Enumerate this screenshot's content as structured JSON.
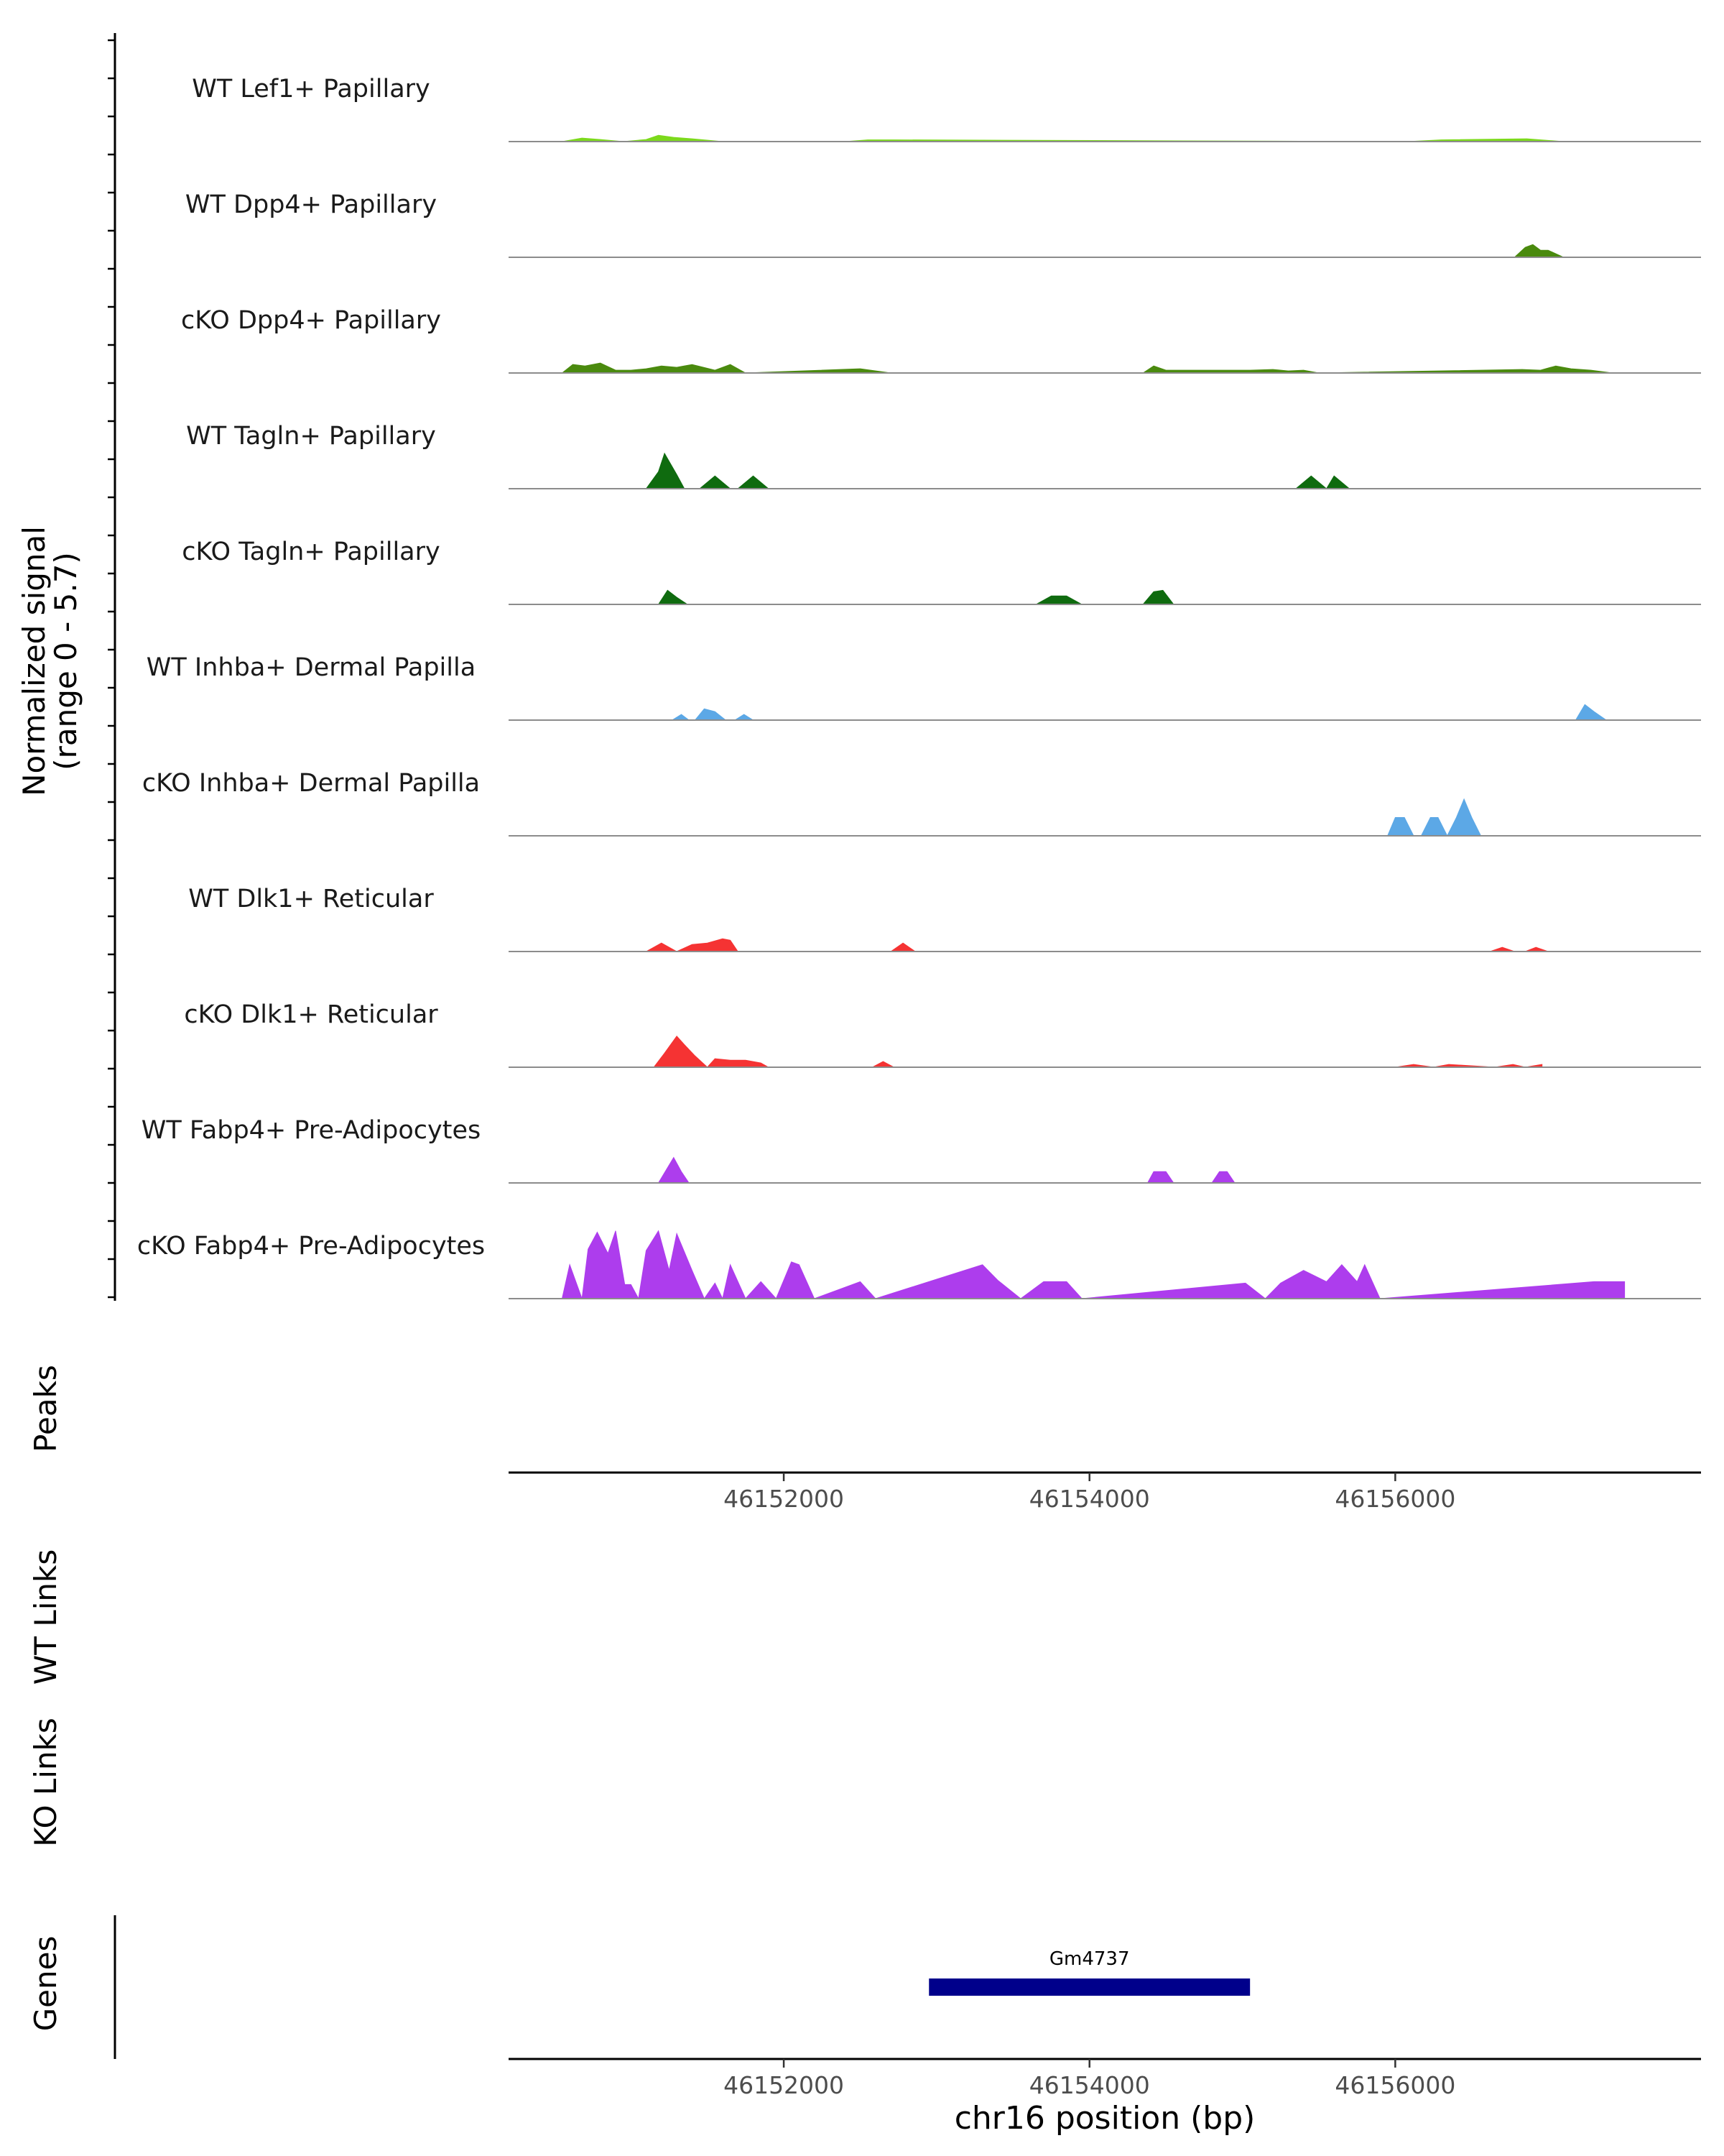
{
  "chart_data": {
    "type": "area",
    "title": "",
    "signal_ylabel": "Normalized signal",
    "signal_range_label": "(range 0 - 5.7)",
    "ylim": [
      0,
      5.7
    ],
    "xlim": [
      46150200,
      46158000
    ],
    "chromosome": "chr16",
    "xlabel": "chr16 position (bp)",
    "xticks": [
      46152000,
      46154000,
      46156000
    ],
    "xtick_labels": [
      "46152000",
      "46154000",
      "46156000"
    ],
    "tracks": [
      {
        "name": "WT Lef1+ Papillary",
        "color": "#7cd91c",
        "x": [
          46150550,
          46150680,
          46150800,
          46150950,
          46151100,
          46151180,
          46151280,
          46151400,
          46151600,
          46152400,
          46152550,
          46152720,
          46156080,
          46156300,
          46156860,
          46157100
        ],
        "y": [
          0,
          0.25,
          0.15,
          0,
          0.15,
          0.45,
          0.3,
          0.2,
          0,
          0,
          0.12,
          0.12,
          0,
          0.12,
          0.2,
          0
        ]
      },
      {
        "name": "WT Dpp4+ Papillary",
        "color": "#4a8a0e",
        "x": [
          46156780,
          46156850,
          46156900,
          46156950,
          46157000,
          46157100
        ],
        "y": [
          0,
          0.7,
          0.9,
          0.5,
          0.5,
          0
        ]
      },
      {
        "name": "cKO Dpp4+ Papillary",
        "color": "#4a8a0e",
        "x": [
          46150550,
          46150620,
          46150700,
          46150800,
          46150900,
          46151000,
          46151100,
          46151200,
          46151300,
          46151400,
          46151550,
          46151650,
          46151750,
          46152500,
          46152700,
          46154350,
          46154420,
          46154500,
          46155050,
          46155200,
          46155300,
          46155400,
          46155500,
          46156830,
          46156950,
          46157050,
          46157150,
          46157280,
          46157420
        ],
        "y": [
          0,
          0.6,
          0.5,
          0.7,
          0.2,
          0.2,
          0.3,
          0.5,
          0.4,
          0.6,
          0.2,
          0.6,
          0,
          0.3,
          0,
          0,
          0.5,
          0.2,
          0.2,
          0.25,
          0.15,
          0.2,
          0,
          0.25,
          0.2,
          0.5,
          0.3,
          0.2,
          0
        ]
      },
      {
        "name": "WT Tagln+ Papillary",
        "color": "#0f6b0f",
        "x": [
          46151100,
          46151180,
          46151220,
          46151300,
          46151350,
          46151450,
          46151550,
          46151650,
          46151700,
          46151800,
          46151900,
          46155350,
          46155450,
          46155550,
          46155600,
          46155700
        ],
        "y": [
          0,
          1.2,
          2.5,
          1.0,
          0,
          0,
          0.9,
          0,
          0,
          0.9,
          0,
          0,
          0.9,
          0,
          0.9,
          0
        ]
      },
      {
        "name": "cKO Tagln+ Papillary",
        "color": "#0f6b0f",
        "x": [
          46151180,
          46151240,
          46151300,
          46151370,
          46153650,
          46153750,
          46153850,
          46153950,
          46154350,
          46154420,
          46154480,
          46154550
        ],
        "y": [
          0,
          1.0,
          0.5,
          0,
          0,
          0.6,
          0.6,
          0,
          0,
          0.9,
          1.0,
          0
        ]
      },
      {
        "name": "WT Inhba+ Dermal Papilla",
        "color": "#5ca8e6",
        "x": [
          46151270,
          46151330,
          46151380,
          46151420,
          46151480,
          46151550,
          46151620,
          46151680,
          46151740,
          46151800,
          46157180,
          46157240,
          46157300,
          46157380
        ],
        "y": [
          0,
          0.4,
          0,
          0,
          0.8,
          0.6,
          0,
          0,
          0.4,
          0,
          0,
          1.1,
          0.6,
          0
        ]
      },
      {
        "name": "cKO Inhba+ Dermal Papilla",
        "color": "#5ca8e6",
        "x": [
          46155950,
          46156000,
          46156060,
          46156120,
          46156170,
          46156230,
          46156280,
          46156340,
          46156400,
          46156450,
          46156500,
          46156560
        ],
        "y": [
          0,
          1.3,
          1.3,
          0,
          0,
          1.3,
          1.3,
          0,
          1.3,
          2.6,
          1.3,
          0
        ]
      },
      {
        "name": "WT Dlk1+ Reticular",
        "color": "#f53333",
        "x": [
          46151100,
          46151200,
          46151300,
          46151400,
          46151500,
          46151600,
          46151650,
          46151700,
          46152700,
          46152780,
          46152860,
          46156620,
          46156700,
          46156780,
          46156850,
          46156920,
          46157000
        ],
        "y": [
          0,
          0.6,
          0,
          0.5,
          0.6,
          0.9,
          0.8,
          0,
          0,
          0.6,
          0,
          0,
          0.3,
          0,
          0,
          0.3,
          0
        ]
      },
      {
        "name": "cKO Dlk1+ Reticular",
        "color": "#f53333",
        "x": [
          46151150,
          46151220,
          46151300,
          46151350,
          46151420,
          46151500,
          46151550,
          46151650,
          46151750,
          46151850,
          46151900,
          46152580,
          46152650,
          46152720,
          46156000,
          46156120,
          46156250,
          46156350,
          46156650,
          46156770,
          46156850,
          46156960
        ],
        "y": [
          0,
          1.0,
          2.2,
          1.6,
          0.8,
          0,
          0.6,
          0.5,
          0.5,
          0.3,
          0,
          0,
          0.4,
          0,
          0,
          0.2,
          0,
          0.2,
          0,
          0.2,
          0,
          0.2
        ]
      },
      {
        "name": "WT Fabp4+ Pre-Adipocytes",
        "color": "#ad3ded",
        "x": [
          46151180,
          46151280,
          46151330,
          46151380,
          46154380,
          46154420,
          46154500,
          46154550,
          46154800,
          46154850,
          46154900,
          46154950
        ],
        "y": [
          0,
          1.8,
          0.8,
          0,
          0,
          0.8,
          0.8,
          0,
          0,
          0.8,
          0.8,
          0
        ]
      },
      {
        "name": "cKO Fabp4+ Pre-Adipocytes",
        "color": "#ad3ded",
        "x": [
          46150550,
          46150600,
          46150680,
          46150720,
          46150780,
          46150850,
          46150900,
          46150960,
          46151000,
          46151050,
          46151100,
          46151180,
          46151250,
          46151300,
          46151400,
          46151480,
          46151550,
          46151600,
          46151650,
          46151750,
          46151850,
          46151950,
          46152050,
          46152100,
          46152200,
          46152500,
          46152600,
          46153300,
          46153400,
          46153550,
          46153700,
          46153850,
          46153950,
          46155020,
          46155150,
          46155250,
          46155400,
          46155550,
          46155650,
          46155750,
          46155800,
          46155900,
          46157300,
          46157500
        ],
        "y": [
          0,
          2.4,
          0,
          3.5,
          4.7,
          3.2,
          4.8,
          1.0,
          1.0,
          0,
          3.4,
          4.8,
          2.0,
          4.6,
          2.0,
          0,
          1.1,
          0,
          2.4,
          0,
          1.2,
          0,
          2.6,
          2.4,
          0,
          1.2,
          0,
          2.4,
          1.3,
          0,
          1.2,
          1.2,
          0,
          1.1,
          0,
          1.1,
          2.0,
          1.2,
          2.4,
          1.2,
          2.4,
          0,
          1.2,
          1.2
        ]
      }
    ],
    "track_rows": [
      {
        "label": "Peaks"
      },
      {
        "label": "WT Links"
      },
      {
        "label": "KO Links"
      },
      {
        "label": "Genes"
      }
    ],
    "genes": [
      {
        "name": "Gm4737",
        "start": 46152950,
        "end": 46155050,
        "color": "#00008b"
      }
    ]
  }
}
